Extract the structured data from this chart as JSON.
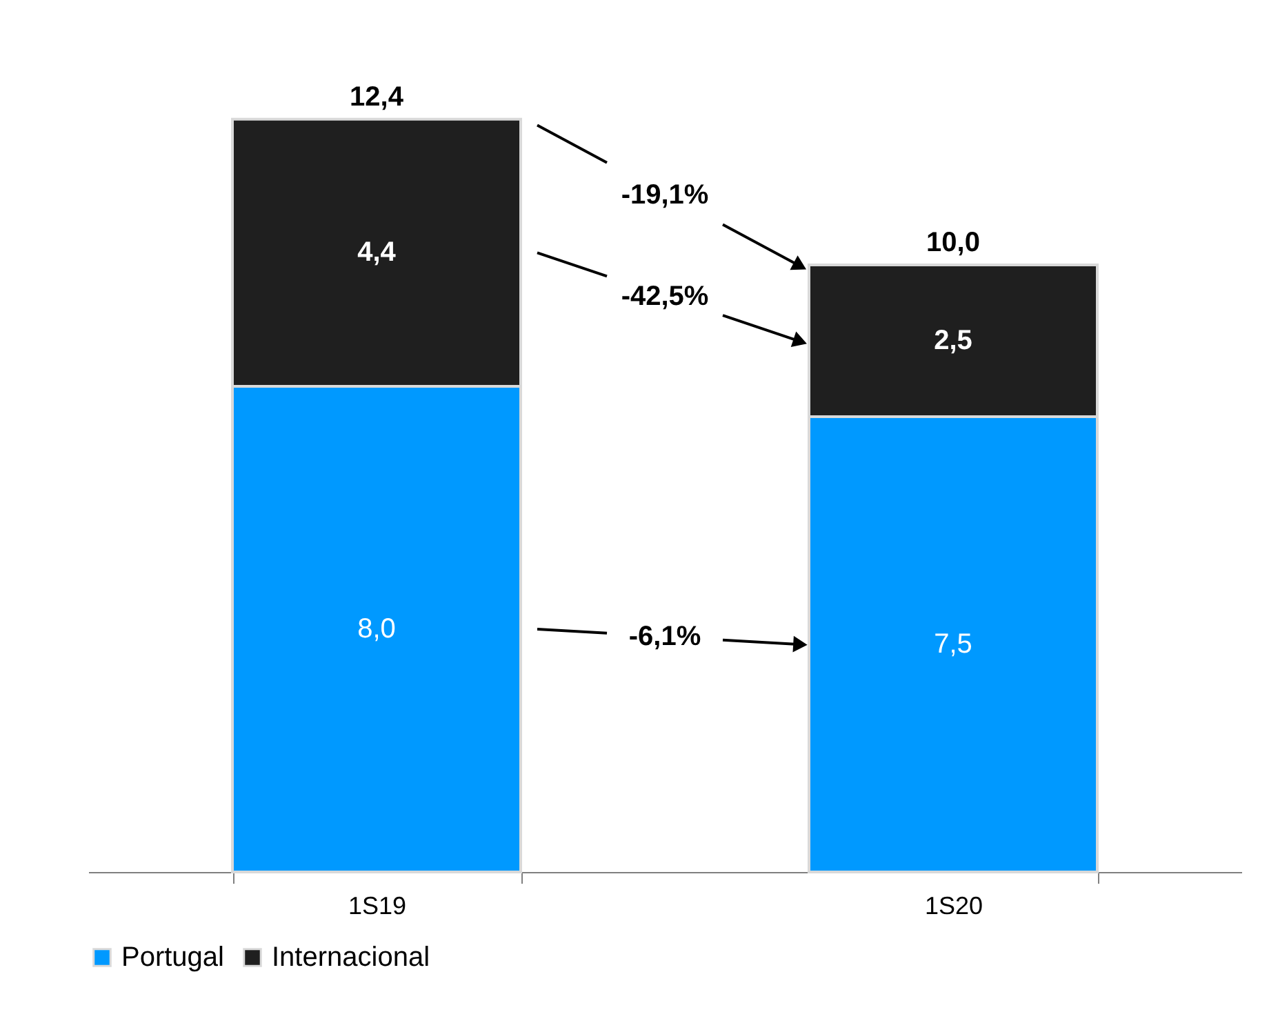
{
  "chart_data": {
    "type": "bar",
    "stacked": true,
    "categories": [
      "1S19",
      "1S20"
    ],
    "series": [
      {
        "name": "Portugal",
        "color": "#0099ff",
        "values": [
          8.0,
          7.5
        ],
        "value_labels": [
          "8,0",
          "7,5"
        ]
      },
      {
        "name": "Internacional",
        "color": "#1f1f1f",
        "values": [
          4.4,
          2.5
        ],
        "value_labels": [
          "4,4",
          "2,5"
        ]
      }
    ],
    "totals": [
      "12,4",
      "10,0"
    ],
    "annotations": [
      "-19,1%",
      "-42,5%",
      "-6,1%"
    ],
    "legend": "bottom",
    "grid": false
  }
}
